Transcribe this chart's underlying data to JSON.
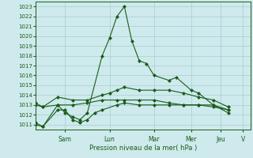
{
  "xlabel": "Pression niveau de la mer( hPa )",
  "ylim": [
    1010.5,
    1023.5
  ],
  "yticks": [
    1011,
    1012,
    1013,
    1014,
    1015,
    1016,
    1017,
    1018,
    1019,
    1020,
    1021,
    1022,
    1023
  ],
  "bg_color": "#ceeaec",
  "grid_color": "#a8cdd0",
  "line_color": "#1a5c1a",
  "day_labels": [
    "Sam",
    "Lun",
    "Mar",
    "Mer",
    "Jeu",
    "V"
  ],
  "day_x": [
    32,
    80,
    128,
    176,
    224,
    272
  ],
  "xlim": [
    0,
    14
  ],
  "series": [
    {
      "x": [
        0,
        0.5,
        1.5,
        2.0,
        2.5,
        3.0,
        3.5,
        4.5,
        5.0,
        5.5,
        6.0,
        6.5,
        7.0,
        7.5,
        8.0,
        9.0,
        9.5,
        10.5,
        11.0,
        12.0,
        13.0
      ],
      "y": [
        1011.0,
        1010.8,
        1013.0,
        1012.2,
        1011.8,
        1011.5,
        1012.2,
        1018.0,
        1019.8,
        1022.0,
        1023.0,
        1019.5,
        1017.5,
        1017.2,
        1016.0,
        1015.5,
        1015.8,
        1014.5,
        1014.2,
        1013.0,
        1012.2
      ]
    },
    {
      "x": [
        0,
        0.5,
        1.5,
        2.5,
        3.5,
        4.5,
        5.0,
        5.5,
        6.0,
        7.0,
        8.0,
        9.0,
        10.0,
        11.0,
        12.0,
        13.0
      ],
      "y": [
        1013.0,
        1012.8,
        1013.8,
        1013.5,
        1013.5,
        1014.0,
        1014.2,
        1014.5,
        1014.8,
        1014.5,
        1014.5,
        1014.5,
        1014.2,
        1013.8,
        1013.5,
        1012.8
      ]
    },
    {
      "x": [
        0,
        0.5,
        1.5,
        2.5,
        3.5,
        4.5,
        5.5,
        6.0,
        7.0,
        8.0,
        9.0,
        10.0,
        11.0,
        12.0,
        13.0
      ],
      "y": [
        1013.2,
        1012.8,
        1013.0,
        1013.0,
        1013.2,
        1013.5,
        1013.5,
        1013.5,
        1013.5,
        1013.5,
        1013.2,
        1013.0,
        1013.0,
        1013.0,
        1012.5
      ]
    },
    {
      "x": [
        0,
        0.5,
        1.5,
        2.0,
        2.5,
        3.0,
        3.5,
        4.0,
        4.5,
        5.5,
        6.0,
        7.0,
        8.0,
        9.0,
        10.0,
        11.0,
        12.0,
        13.0
      ],
      "y": [
        1011.2,
        1010.8,
        1012.5,
        1012.5,
        1011.5,
        1011.2,
        1011.5,
        1012.2,
        1012.5,
        1013.0,
        1013.2,
        1013.0,
        1013.0,
        1013.0,
        1013.0,
        1013.0,
        1012.8,
        1012.5
      ]
    }
  ],
  "xtick_positions": [
    2.0,
    5.0,
    8.0,
    10.5,
    12.5,
    14.0
  ],
  "xtick_labels": [
    "Sam",
    "Lun",
    "Mar",
    "Mer",
    "Jeu",
    "V"
  ]
}
